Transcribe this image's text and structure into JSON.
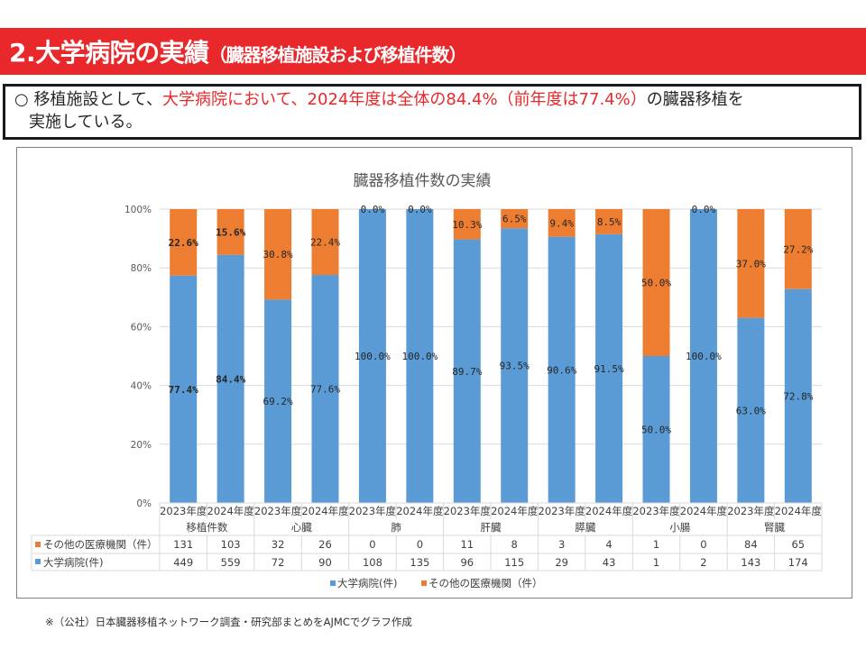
{
  "header": {
    "title_main": "2.大学病院の実績",
    "title_sub": "（臓器移植施設および移植件数）",
    "background_color": "#E8282B"
  },
  "summary": {
    "bullet": "○",
    "text_before": " 移植施設として、",
    "text_highlight": "大学病院において、2024年度は全体の84.4%（前年度は77.4%）",
    "text_after": "の臓器移植を",
    "line2": "実施している。",
    "highlight_color": "#E8282B"
  },
  "chart_data": {
    "type": "bar",
    "stacking": "percent",
    "title": "臓器移植件数の実績",
    "xlabel": "",
    "ylabel": "",
    "ylim": [
      0,
      100
    ],
    "yticks": [
      0,
      20,
      40,
      60,
      80,
      100
    ],
    "ytick_labels": [
      "0%",
      "20%",
      "40%",
      "60%",
      "80%",
      "100%"
    ],
    "grid": true,
    "groups": [
      "移植件数",
      "心臓",
      "肺",
      "肝臓",
      "膵臓",
      "小腸",
      "腎臓"
    ],
    "years": [
      "2023年度",
      "2024年度"
    ],
    "categories": [
      "2023年度",
      "2024年度",
      "2023年度",
      "2024年度",
      "2023年度",
      "2024年度",
      "2023年度",
      "2024年度",
      "2023年度",
      "2024年度",
      "2023年度",
      "2024年度",
      "2023年度",
      "2024年度"
    ],
    "series": [
      {
        "name": "大学病院(件)",
        "color": "#5B9BD5",
        "counts": [
          449,
          559,
          72,
          90,
          108,
          135,
          96,
          115,
          29,
          43,
          1,
          2,
          143,
          174
        ],
        "percent": [
          77.4,
          84.4,
          69.2,
          77.6,
          100.0,
          100.0,
          89.7,
          93.5,
          90.6,
          91.5,
          50.0,
          100.0,
          63.0,
          72.8
        ],
        "labels": [
          "77.4%",
          "84.4%",
          "69.2%",
          "77.6%",
          "100.0%",
          "100.0%",
          "89.7%",
          "93.5%",
          "90.6%",
          "91.5%",
          "50.0%",
          "100.0%",
          "63.0%",
          "72.8%"
        ]
      },
      {
        "name": "その他の医療機関（件）",
        "color": "#ED7D31",
        "counts": [
          131,
          103,
          32,
          26,
          0,
          0,
          11,
          8,
          3,
          4,
          1,
          0,
          84,
          65
        ],
        "percent": [
          22.6,
          15.6,
          30.8,
          22.4,
          0.0,
          0.0,
          10.3,
          6.5,
          9.4,
          8.5,
          50.0,
          0.0,
          37.0,
          27.2
        ],
        "labels": [
          "22.6%",
          "15.6%",
          "30.8%",
          "22.4%",
          "0.0%",
          "0.0%",
          "10.3%",
          "6.5%",
          "9.4%",
          "8.5%",
          "50.0%",
          "0.0%",
          "37.0%",
          "27.2%"
        ]
      }
    ],
    "data_table_row_order": [
      1,
      0
    ],
    "emphasized_group": "移植件数",
    "legend": {
      "position": "bottom",
      "entries": [
        {
          "name": "大学病院(件)",
          "color": "#5B9BD5"
        },
        {
          "name": "その他の医療機関（件）",
          "color": "#ED7D31"
        }
      ]
    }
  },
  "footnote": "※（公社）日本臓器移植ネットワーク調査・研究部まとめをAJMCでグラフ作成"
}
